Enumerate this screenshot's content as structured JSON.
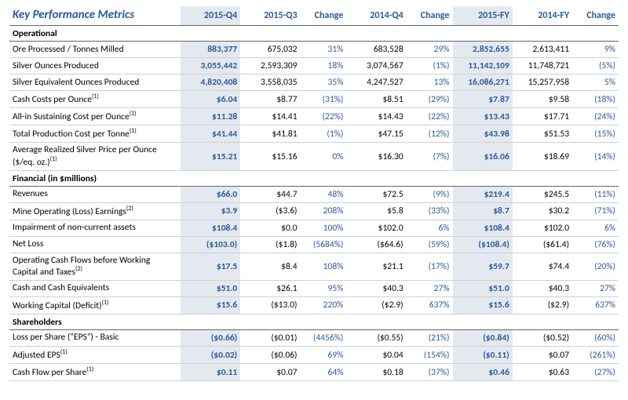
{
  "title": "Key Performance Metrics",
  "headers": [
    "2015-Q4",
    "2015-Q3",
    "Change",
    "2014-Q4",
    "Change",
    "2015-FY",
    "2014-FY",
    "Change"
  ],
  "highlightCols": [
    0,
    5
  ],
  "changeCols": [
    2,
    4,
    7
  ],
  "colors": {
    "title": "#2a5a9c",
    "highlightBg": "#e4e9f0",
    "change": "#2a5a9c",
    "sectionBorder": "#666666",
    "rowBorder": "#d0d0d0"
  },
  "sections": [
    {
      "name": "Operational",
      "rows": [
        {
          "label": "Ore Processed / Tonnes Milled",
          "sup": "",
          "cells": [
            "883,377",
            "675,032",
            "31%",
            "683,528",
            "29%",
            "2,852,655",
            "2,613,411",
            "9%"
          ]
        },
        {
          "label": "Silver Ounces Produced",
          "sup": "",
          "cells": [
            "3,055,442",
            "2,593,309",
            "18%",
            "3,074,567",
            "(1%)",
            "11,142,109",
            "11,748,721",
            "(5%)"
          ]
        },
        {
          "label": "Silver Equivalent Ounces Produced",
          "sup": "",
          "cells": [
            "4,820,408",
            "3,558,035",
            "35%",
            "4,247,527",
            "13%",
            "16,086,271",
            "15,257,958",
            "5%"
          ]
        },
        {
          "label": "Cash Costs per Ounce",
          "sup": "(1)",
          "cells": [
            "$6.04",
            "$8.77",
            "(31%)",
            "$8.51",
            "(29%)",
            "$7.87",
            "$9.58",
            "(18%)"
          ]
        },
        {
          "label": "All-in Sustaining Cost per Ounce",
          "sup": "(1)",
          "cells": [
            "$11.28",
            "$14.41",
            "(22%)",
            "$14.43",
            "(22%)",
            "$13.43",
            "$17.71",
            "(24%)"
          ]
        },
        {
          "label": "Total Production Cost per Tonne",
          "sup": "(1)",
          "cells": [
            "$41.44",
            "$41.81",
            "(1%)",
            "$47.15",
            "(12%)",
            "$43.98",
            "$51.53",
            "(15%)"
          ]
        },
        {
          "label": "Average Realized Silver Price per Ounce ($/eq. oz.)",
          "sup": "(1)",
          "cells": [
            "$15.21",
            "$15.16",
            "0%",
            "$16.30",
            "(7%)",
            "$16.06",
            "$18.69",
            "(14%)"
          ]
        }
      ]
    },
    {
      "name": "Financial (in $millions)",
      "rows": [
        {
          "label": "Revenues",
          "sup": "",
          "cells": [
            "$66.0",
            "$44.7",
            "48%",
            "$72.5",
            "(9%)",
            "$219.4",
            "$245.5",
            "(11%)"
          ]
        },
        {
          "label": "Mine Operating (Loss) Earnings",
          "sup": "(2)",
          "cells": [
            "$3.9",
            "($3.6)",
            "208%",
            "$5.8",
            "(33%)",
            "$8.7",
            "$30.2",
            "(71%)"
          ]
        },
        {
          "label": "Impairment of non-current assets",
          "sup": "",
          "cells": [
            "$108.4",
            "$0.0",
            "100%",
            "$102.0",
            "6%",
            "$108.4",
            "$102.0",
            "6%"
          ]
        },
        {
          "label": "Net Loss",
          "sup": "",
          "cells": [
            "($103.0)",
            "($1.8)",
            "(5684%)",
            "($64.6)",
            "(59%)",
            "($108.4)",
            "($61.4)",
            "(76%)"
          ]
        },
        {
          "label": "Operating Cash Flows before Working Capital and Taxes",
          "sup": "(2)",
          "cells": [
            "$17.5",
            "$8.4",
            "108%",
            "$21.1",
            "(17%)",
            "$59.7",
            "$74.4",
            "(20%)"
          ]
        },
        {
          "label": "Cash and Cash Equivalents",
          "sup": "",
          "cells": [
            "$51.0",
            "$26.1",
            "95%",
            "$40.3",
            "27%",
            "$51.0",
            "$40.3",
            "27%"
          ]
        },
        {
          "label": "Working Capital (Deficit)",
          "sup": "(1)",
          "cells": [
            "$15.6",
            "($13.0)",
            "220%",
            "($2.9)",
            "637%",
            "$15.6",
            "($2.9)",
            "637%"
          ]
        }
      ]
    },
    {
      "name": "Shareholders",
      "rows": [
        {
          "label": "Loss per Share (\"EPS\") - Basic",
          "sup": "",
          "cells": [
            "($0.66)",
            "($0.01)",
            "(4456%)",
            "($0.55)",
            "(21%)",
            "($0.84)",
            "($0.52)",
            "(60%)"
          ]
        },
        {
          "label": "Adjusted EPS",
          "sup": "(1)",
          "cells": [
            "($0.02)",
            "($0.06)",
            "69%",
            "$0.04",
            "(154%)",
            "($0.11)",
            "$0.07",
            "(261%)"
          ]
        },
        {
          "label": "Cash Flow per Share",
          "sup": "(1)",
          "cells": [
            "$0.11",
            "$0.07",
            "64%",
            "$0.18",
            "(37%)",
            "$0.46",
            "$0.63",
            "(27%)"
          ]
        }
      ]
    }
  ]
}
